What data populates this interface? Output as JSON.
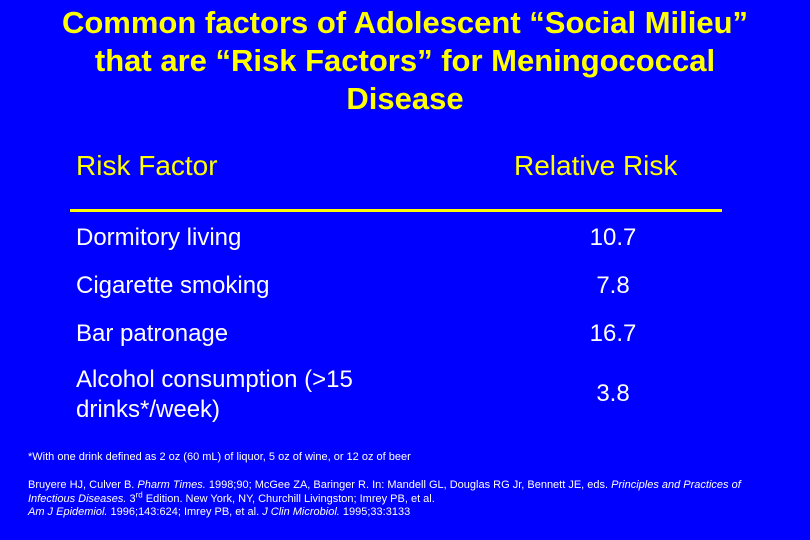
{
  "slide": {
    "title": "Common factors of Adolescent “Social Milieu”\nthat are “Risk Factors” for Meningococcal\nDisease",
    "table": {
      "header_factor": "Risk Factor",
      "header_risk": "Relative Risk",
      "rows": [
        {
          "factor": "Dormitory living",
          "risk": "10.7"
        },
        {
          "factor": "Cigarette smoking",
          "risk": "7.8"
        },
        {
          "factor": "Bar patronage",
          "risk": "16.7"
        },
        {
          "factor": "Alcohol consumption (>15",
          "factor_line2": "drinks*/week)",
          "risk": "3.8"
        }
      ]
    },
    "footnote": "*With one drink defined as 2 oz (60 mL) of liquor, 5 oz of wine, or 12 oz of beer",
    "references": {
      "r1_a": "Bruyere HJ, Culver B. ",
      "r1_journal": "Pharm Times.",
      "r1_b": " 1998;90; McGee ZA, Baringer R. In: Mandell GL, Douglas RG Jr, Bennett JE, eds. ",
      "r1_book": "Principles and Practices of Infectious Diseases.",
      "r1_c": " 3",
      "r1_sup": "rd",
      "r1_d": " Edition. New York, NY, Churchill Livingston; Imrey PB, et al.",
      "r2_journal": "Am J Epidemiol.",
      "r2_a": " 1996;143:624; Imrey PB, et al. ",
      "r2_journal2": "J Clin Microbiol.",
      "r2_b": " 1995;33:3133"
    }
  }
}
